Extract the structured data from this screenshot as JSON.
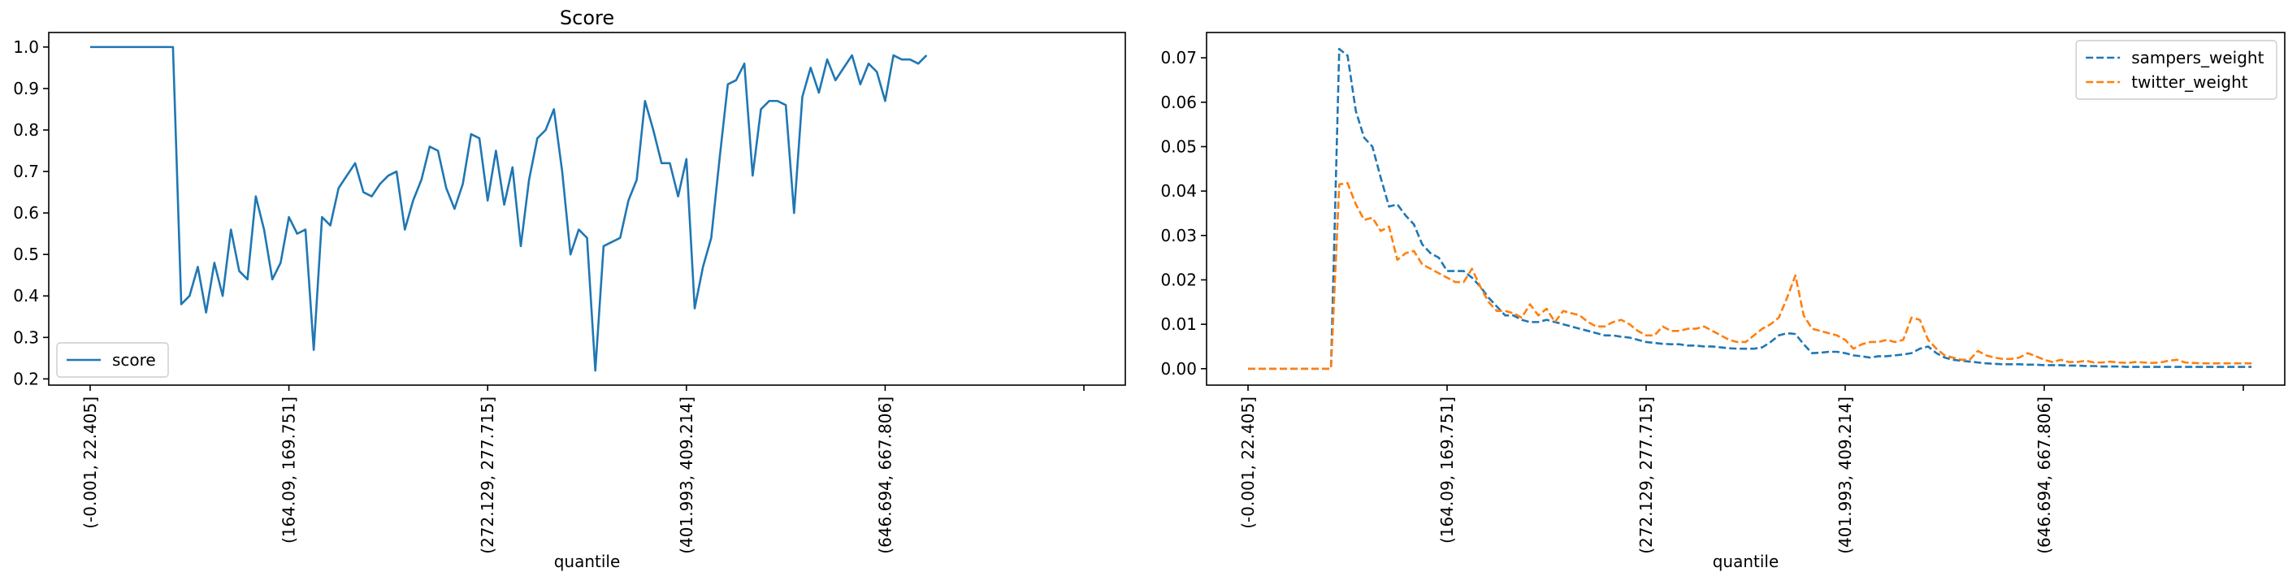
{
  "chart_data": [
    {
      "type": "line",
      "title": "Score",
      "xlabel": "quantile",
      "ylabel": "",
      "xlim": [
        -5,
        125
      ],
      "ylim": [
        0.185,
        1.035
      ],
      "grid": false,
      "legend_position": "lower-left",
      "y_ticks": [
        0.2,
        0.3,
        0.4,
        0.5,
        0.6,
        0.7,
        0.8,
        0.9,
        1.0
      ],
      "y_tick_labels": [
        "0.2",
        "0.3",
        "0.4",
        "0.5",
        "0.6",
        "0.7",
        "0.8",
        "0.9",
        "1.0"
      ],
      "x_ticks": [
        0,
        24,
        48,
        72,
        96,
        120
      ],
      "x_tick_labels": [
        "(-0.001, 22.405]",
        "(164.09, 169.751]",
        "(272.129, 277.715]",
        "(401.993, 409.214]",
        "(646.694, 667.806]",
        ""
      ],
      "series": [
        {
          "name": "score",
          "color": "#1f77b4",
          "dash": "solid",
          "values": [
            1.0,
            1.0,
            1.0,
            1.0,
            1.0,
            1.0,
            1.0,
            1.0,
            1.0,
            1.0,
            1.0,
            0.38,
            0.4,
            0.47,
            0.36,
            0.48,
            0.4,
            0.56,
            0.46,
            0.44,
            0.64,
            0.56,
            0.44,
            0.48,
            0.59,
            0.55,
            0.56,
            0.27,
            0.59,
            0.57,
            0.66,
            0.69,
            0.72,
            0.65,
            0.64,
            0.67,
            0.69,
            0.7,
            0.56,
            0.63,
            0.68,
            0.76,
            0.75,
            0.66,
            0.61,
            0.67,
            0.79,
            0.78,
            0.63,
            0.75,
            0.62,
            0.71,
            0.52,
            0.68,
            0.78,
            0.8,
            0.85,
            0.7,
            0.5,
            0.56,
            0.54,
            0.22,
            0.52,
            0.53,
            0.54,
            0.63,
            0.68,
            0.87,
            0.8,
            0.72,
            0.72,
            0.64,
            0.73,
            0.37,
            0.47,
            0.54,
            0.73,
            0.91,
            0.92,
            0.96,
            0.69,
            0.85,
            0.87,
            0.87,
            0.86,
            0.6,
            0.88,
            0.95,
            0.89,
            0.97,
            0.92,
            0.95,
            0.98,
            0.91,
            0.96,
            0.94,
            0.87,
            0.98,
            0.97,
            0.97,
            0.96,
            0.98
          ]
        }
      ]
    },
    {
      "type": "line",
      "title": "",
      "xlabel": "quantile",
      "ylabel": "",
      "xlim": [
        -5,
        125
      ],
      "ylim": [
        -0.0037,
        0.0757
      ],
      "grid": false,
      "legend_position": "upper-right",
      "y_ticks": [
        0,
        0.01,
        0.02,
        0.03,
        0.04,
        0.05,
        0.06,
        0.07
      ],
      "y_tick_labels": [
        "0.00",
        "0.01",
        "0.02",
        "0.03",
        "0.04",
        "0.05",
        "0.06",
        "0.07"
      ],
      "x_ticks": [
        0,
        24,
        48,
        72,
        96,
        120
      ],
      "x_tick_labels": [
        "(-0.001, 22.405]",
        "(164.09, 169.751]",
        "(272.129, 277.715]",
        "(401.993, 409.214]",
        "(646.694, 667.806]",
        ""
      ],
      "series": [
        {
          "name": "sampers_weight",
          "color": "#1f77b4",
          "dash": "dashed",
          "values": [
            0,
            0,
            0,
            0,
            0,
            0,
            0,
            0,
            0,
            0,
            0,
            0.072,
            0.0705,
            0.058,
            0.052,
            0.05,
            0.043,
            0.0365,
            0.037,
            0.0345,
            0.0325,
            0.028,
            0.026,
            0.025,
            0.022,
            0.022,
            0.022,
            0.0205,
            0.0185,
            0.016,
            0.014,
            0.012,
            0.012,
            0.011,
            0.0105,
            0.0105,
            0.011,
            0.0105,
            0.01,
            0.0095,
            0.009,
            0.0085,
            0.008,
            0.0075,
            0.0075,
            0.0072,
            0.007,
            0.0065,
            0.006,
            0.0058,
            0.0056,
            0.0055,
            0.0055,
            0.0052,
            0.0052,
            0.005,
            0.005,
            0.0048,
            0.0046,
            0.0045,
            0.0045,
            0.0045,
            0.0048,
            0.006,
            0.0075,
            0.008,
            0.0078,
            0.0055,
            0.0035,
            0.0036,
            0.0038,
            0.0038,
            0.0035,
            0.003,
            0.0028,
            0.0025,
            0.0028,
            0.0028,
            0.003,
            0.0032,
            0.0035,
            0.0045,
            0.005,
            0.0035,
            0.0025,
            0.002,
            0.0018,
            0.0016,
            0.0014,
            0.0012,
            0.0011,
            0.001,
            0.001,
            0.001,
            0.0009,
            0.0009,
            0.0008,
            0.0008,
            0.0008,
            0.0007,
            0.0007,
            0.0006,
            0.0006,
            0.0005,
            0.0005,
            0.0005,
            0.0004,
            0.0004,
            0.0004,
            0.0004,
            0.0004,
            0.0004,
            0.0004,
            0.0004,
            0.0004,
            0.0004,
            0.0004,
            0.0004,
            0.0004,
            0.0004,
            0.0004,
            0.0004
          ]
        },
        {
          "name": "twitter_weight",
          "color": "#ff7f0e",
          "dash": "dashed",
          "values": [
            0,
            0,
            0,
            0,
            0,
            0,
            0,
            0,
            0,
            0,
            0,
            0.0415,
            0.0418,
            0.037,
            0.0335,
            0.034,
            0.031,
            0.032,
            0.0245,
            0.026,
            0.0265,
            0.0235,
            0.0225,
            0.0215,
            0.0205,
            0.0195,
            0.0195,
            0.0225,
            0.0185,
            0.015,
            0.013,
            0.013,
            0.0125,
            0.0115,
            0.0145,
            0.012,
            0.0135,
            0.0105,
            0.013,
            0.0125,
            0.012,
            0.0105,
            0.0095,
            0.0095,
            0.0105,
            0.011,
            0.01,
            0.0085,
            0.0075,
            0.0075,
            0.0095,
            0.0085,
            0.0085,
            0.009,
            0.009,
            0.0095,
            0.0085,
            0.0075,
            0.0065,
            0.006,
            0.006,
            0.0075,
            0.009,
            0.01,
            0.0115,
            0.016,
            0.021,
            0.012,
            0.009,
            0.0085,
            0.008,
            0.0075,
            0.0065,
            0.0045,
            0.0055,
            0.006,
            0.006,
            0.0065,
            0.006,
            0.0065,
            0.0115,
            0.011,
            0.0065,
            0.0045,
            0.003,
            0.0025,
            0.002,
            0.002,
            0.004,
            0.003,
            0.0025,
            0.0022,
            0.0022,
            0.0025,
            0.0035,
            0.0028,
            0.002,
            0.0015,
            0.002,
            0.0015,
            0.0015,
            0.0018,
            0.0014,
            0.0014,
            0.0016,
            0.0014,
            0.0013,
            0.0015,
            0.0014,
            0.0013,
            0.0014,
            0.0018,
            0.002,
            0.0014,
            0.0013,
            0.0012,
            0.0012,
            0.0012,
            0.0012,
            0.0012,
            0.0012,
            0.0012
          ]
        }
      ]
    }
  ]
}
